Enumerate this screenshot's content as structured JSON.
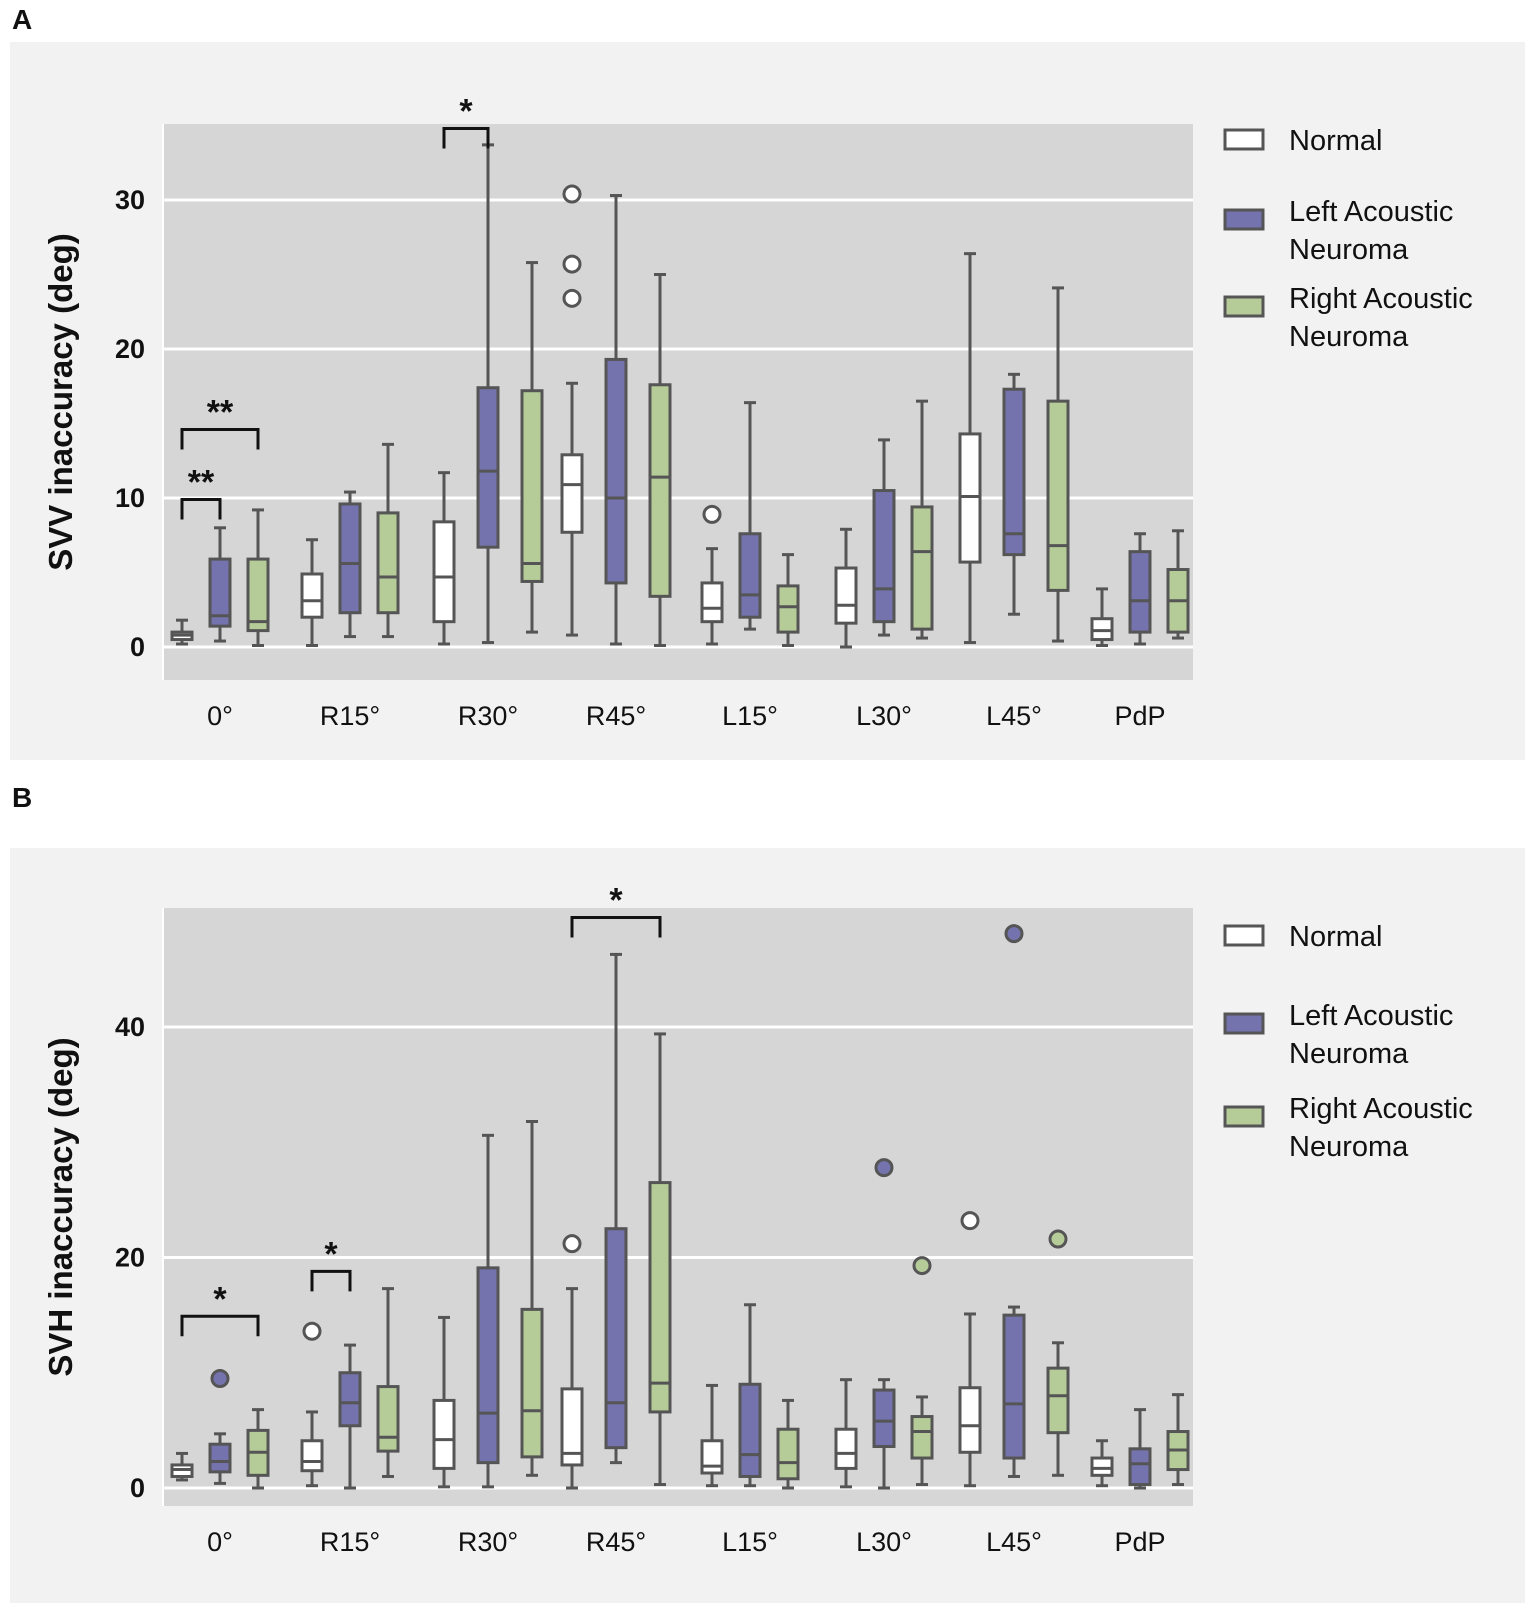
{
  "figure": {
    "panel_a_label": "A",
    "panel_b_label": "B"
  },
  "colors": {
    "Normal": "#ffffff",
    "Left Acoustic Neuroma": "#7473ad",
    "Right Acoustic Neuroma": "#b5cc98",
    "plot_bg": "#d6d6d6",
    "panel_bg": "#f2f2f2",
    "line": "#555555"
  },
  "chart_data": [
    {
      "type": "box",
      "panel": "A",
      "ylabel": "SVV inaccuracy (deg)",
      "ylim": [
        -2,
        35
      ],
      "yticks": [
        0,
        10,
        20,
        30
      ],
      "categories": [
        "0°",
        "R15°",
        "R30°",
        "R45°",
        "L15°",
        "L30°",
        "L45°",
        "PdP"
      ],
      "legend": [
        "Normal",
        "Left Acoustic\nNeuroma",
        "Right Acoustic\nNeuroma"
      ],
      "series": [
        {
          "name": "Normal",
          "boxes": [
            {
              "min": 0.2,
              "q1": 0.5,
              "median": 0.8,
              "q3": 1.0,
              "max": 1.8,
              "outliers": []
            },
            {
              "min": 0.1,
              "q1": 2.0,
              "median": 3.1,
              "q3": 4.9,
              "max": 7.2,
              "outliers": []
            },
            {
              "min": 0.2,
              "q1": 1.7,
              "median": 4.7,
              "q3": 8.4,
              "max": 11.7,
              "outliers": []
            },
            {
              "min": 0.8,
              "q1": 7.7,
              "median": 10.9,
              "q3": 12.9,
              "max": 17.7,
              "outliers": [
                23.4,
                25.7,
                30.4
              ]
            },
            {
              "min": 0.2,
              "q1": 1.7,
              "median": 2.6,
              "q3": 4.3,
              "max": 6.6,
              "outliers": [
                8.9
              ]
            },
            {
              "min": 0.0,
              "q1": 1.6,
              "median": 2.8,
              "q3": 5.3,
              "max": 7.9,
              "outliers": []
            },
            {
              "min": 0.3,
              "q1": 5.7,
              "median": 10.1,
              "q3": 14.3,
              "max": 26.4,
              "outliers": []
            },
            {
              "min": 0.1,
              "q1": 0.5,
              "median": 1.1,
              "q3": 1.9,
              "max": 3.9,
              "outliers": []
            }
          ]
        },
        {
          "name": "Left Acoustic Neuroma",
          "boxes": [
            {
              "min": 0.4,
              "q1": 1.4,
              "median": 2.1,
              "q3": 5.9,
              "max": 8.0,
              "outliers": []
            },
            {
              "min": 0.7,
              "q1": 2.3,
              "median": 5.6,
              "q3": 9.6,
              "max": 10.4,
              "outliers": []
            },
            {
              "min": 0.3,
              "q1": 6.7,
              "median": 11.8,
              "q3": 17.4,
              "max": 33.7,
              "outliers": []
            },
            {
              "min": 0.2,
              "q1": 4.3,
              "median": 10.0,
              "q3": 19.3,
              "max": 30.3,
              "outliers": []
            },
            {
              "min": 1.2,
              "q1": 2.0,
              "median": 3.5,
              "q3": 7.6,
              "max": 16.4,
              "outliers": []
            },
            {
              "min": 0.8,
              "q1": 1.7,
              "median": 3.9,
              "q3": 10.5,
              "max": 13.9,
              "outliers": []
            },
            {
              "min": 2.2,
              "q1": 6.2,
              "median": 7.6,
              "q3": 17.3,
              "max": 18.3,
              "outliers": []
            },
            {
              "min": 0.2,
              "q1": 1.0,
              "median": 3.1,
              "q3": 6.4,
              "max": 7.6,
              "outliers": []
            }
          ]
        },
        {
          "name": "Right Acoustic Neuroma",
          "boxes": [
            {
              "min": 0.1,
              "q1": 1.1,
              "median": 1.7,
              "q3": 5.9,
              "max": 9.2,
              "outliers": []
            },
            {
              "min": 0.7,
              "q1": 2.3,
              "median": 4.7,
              "q3": 9.0,
              "max": 13.6,
              "outliers": []
            },
            {
              "min": 1.0,
              "q1": 4.4,
              "median": 5.6,
              "q3": 17.2,
              "max": 25.8,
              "outliers": []
            },
            {
              "min": 0.1,
              "q1": 3.4,
              "median": 11.4,
              "q3": 17.6,
              "max": 25.0,
              "outliers": []
            },
            {
              "min": 0.1,
              "q1": 1.0,
              "median": 2.7,
              "q3": 4.1,
              "max": 6.2,
              "outliers": []
            },
            {
              "min": 0.6,
              "q1": 1.2,
              "median": 6.4,
              "q3": 9.4,
              "max": 16.5,
              "outliers": []
            },
            {
              "min": 0.4,
              "q1": 3.8,
              "median": 6.8,
              "q3": 16.5,
              "max": 24.1,
              "outliers": []
            },
            {
              "min": 0.6,
              "q1": 1.0,
              "median": 3.1,
              "q3": 5.2,
              "max": 7.8,
              "outliers": []
            }
          ]
        }
      ],
      "annotations": [
        {
          "label": "*",
          "category": 2,
          "from": 0,
          "to": 1,
          "y": 34.8
        },
        {
          "label": "**",
          "category": 0,
          "from": 0,
          "to": 2,
          "y": 14.6
        },
        {
          "label": "**",
          "category": 0,
          "from": 0,
          "to": 1,
          "y": 9.9
        }
      ]
    },
    {
      "type": "box",
      "panel": "B",
      "ylabel": "SVH inaccuracy (deg)",
      "ylim": [
        -2,
        50
      ],
      "yticks": [
        0,
        20,
        40
      ],
      "categories": [
        "0°",
        "R15°",
        "R30°",
        "R45°",
        "L15°",
        "L30°",
        "L45°",
        "PdP"
      ],
      "legend": [
        "Normal",
        "Left Acoustic\nNeuroma",
        "Right Acoustic\nNeuroma"
      ],
      "series": [
        {
          "name": "Normal",
          "boxes": [
            {
              "min": 0.7,
              "q1": 1.0,
              "median": 1.6,
              "q3": 2.0,
              "max": 3.0,
              "outliers": []
            },
            {
              "min": 0.2,
              "q1": 1.5,
              "median": 2.3,
              "q3": 4.1,
              "max": 6.6,
              "outliers": [
                13.6
              ]
            },
            {
              "min": 0.1,
              "q1": 1.7,
              "median": 4.2,
              "q3": 7.6,
              "max": 14.8,
              "outliers": []
            },
            {
              "min": 0.0,
              "q1": 2.0,
              "median": 3.0,
              "q3": 8.6,
              "max": 17.3,
              "outliers": [
                21.2
              ]
            },
            {
              "min": 0.2,
              "q1": 1.3,
              "median": 1.9,
              "q3": 4.1,
              "max": 8.9,
              "outliers": []
            },
            {
              "min": 0.1,
              "q1": 1.7,
              "median": 3.0,
              "q3": 5.1,
              "max": 9.4,
              "outliers": []
            },
            {
              "min": 0.2,
              "q1": 3.1,
              "median": 5.4,
              "q3": 8.7,
              "max": 15.1,
              "outliers": [
                23.2
              ]
            },
            {
              "min": 0.2,
              "q1": 1.1,
              "median": 1.7,
              "q3": 2.6,
              "max": 4.1,
              "outliers": []
            }
          ]
        },
        {
          "name": "Left Acoustic Neuroma",
          "boxes": [
            {
              "min": 0.4,
              "q1": 1.4,
              "median": 2.3,
              "q3": 3.8,
              "max": 4.7,
              "outliers": [
                9.5
              ]
            },
            {
              "min": 0.0,
              "q1": 5.4,
              "median": 7.4,
              "q3": 10.0,
              "max": 12.4,
              "outliers": []
            },
            {
              "min": 0.1,
              "q1": 2.2,
              "median": 6.5,
              "q3": 19.1,
              "max": 30.6,
              "outliers": []
            },
            {
              "min": 2.2,
              "q1": 3.5,
              "median": 7.4,
              "q3": 22.5,
              "max": 46.3,
              "outliers": []
            },
            {
              "min": 0.2,
              "q1": 1.0,
              "median": 2.9,
              "q3": 9.0,
              "max": 15.9,
              "outliers": []
            },
            {
              "min": 0.0,
              "q1": 3.6,
              "median": 5.8,
              "q3": 8.5,
              "max": 9.4,
              "outliers": [
                27.8
              ]
            },
            {
              "min": 1.0,
              "q1": 2.6,
              "median": 7.3,
              "q3": 15.0,
              "max": 15.7,
              "outliers": [
                48.1
              ]
            },
            {
              "min": 0.0,
              "q1": 0.3,
              "median": 2.1,
              "q3": 3.4,
              "max": 6.8,
              "outliers": []
            }
          ]
        },
        {
          "name": "Right Acoustic Neuroma",
          "boxes": [
            {
              "min": 0.0,
              "q1": 1.1,
              "median": 3.1,
              "q3": 5.0,
              "max": 6.8,
              "outliers": []
            },
            {
              "min": 1.0,
              "q1": 3.2,
              "median": 4.4,
              "q3": 8.8,
              "max": 17.3,
              "outliers": []
            },
            {
              "min": 1.1,
              "q1": 2.7,
              "median": 6.7,
              "q3": 15.5,
              "max": 31.8,
              "outliers": []
            },
            {
              "min": 0.3,
              "q1": 6.6,
              "median": 9.1,
              "q3": 26.5,
              "max": 39.4,
              "outliers": []
            },
            {
              "min": 0.0,
              "q1": 0.8,
              "median": 2.2,
              "q3": 5.1,
              "max": 7.6,
              "outliers": []
            },
            {
              "min": 0.3,
              "q1": 2.6,
              "median": 4.9,
              "q3": 6.2,
              "max": 7.9,
              "outliers": [
                19.3
              ]
            },
            {
              "min": 1.1,
              "q1": 4.8,
              "median": 8.0,
              "q3": 10.4,
              "max": 12.6,
              "outliers": [
                21.6
              ]
            },
            {
              "min": 0.3,
              "q1": 1.6,
              "median": 3.3,
              "q3": 4.9,
              "max": 8.1,
              "outliers": []
            }
          ]
        }
      ],
      "annotations": [
        {
          "label": "*",
          "category": 3,
          "from": 0,
          "to": 2,
          "y": 49.5
        },
        {
          "label": "*",
          "category": 1,
          "from": 0,
          "to": 1,
          "y": 18.8
        },
        {
          "label": "*",
          "category": 0,
          "from": 0,
          "to": 2,
          "y": 14.9
        }
      ]
    }
  ]
}
